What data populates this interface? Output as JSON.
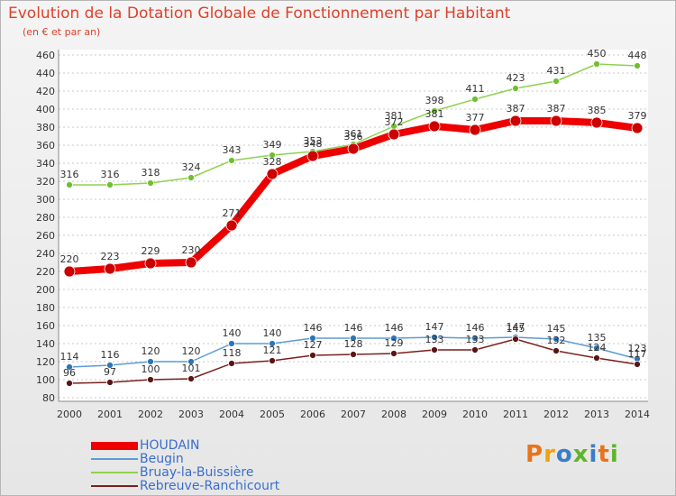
{
  "title": "Evolution de la Dotation Globale de Fonctionnement par Habitant",
  "subtitle": "(en € et par an)",
  "brand": "Proxiti",
  "colors": {
    "HOUDAIN": "#ee0000",
    "Beugin": "#5b9bd5",
    "Bruay-la-Buissière": "#8fd14f",
    "Rebreuve-Ranchicourt": "#7a1f1f",
    "axis_text": "#333333",
    "title": "#e0402a"
  },
  "chart_data": {
    "type": "line",
    "title": "Evolution de la Dotation Globale de Fonctionnement par Habitant",
    "subtitle": "(en € et par an)",
    "xlabel": "",
    "ylabel": "",
    "categories": [
      "2000",
      "2001",
      "2002",
      "2003",
      "2004",
      "2005",
      "2006",
      "2007",
      "2008",
      "2009",
      "2010",
      "2011",
      "2012",
      "2013",
      "2014"
    ],
    "ylim": [
      80,
      460
    ],
    "yticks": [
      80,
      100,
      120,
      140,
      160,
      180,
      200,
      220,
      240,
      260,
      280,
      300,
      320,
      340,
      360,
      380,
      400,
      420,
      440,
      460
    ],
    "grid": true,
    "legend_position": "bottom-left",
    "series": [
      {
        "name": "HOUDAIN",
        "values": [
          220,
          223,
          229,
          230,
          271,
          328,
          348,
          356,
          372,
          381,
          377,
          387,
          387,
          385,
          379
        ]
      },
      {
        "name": "Beugin",
        "values": [
          114,
          116,
          120,
          120,
          140,
          140,
          146,
          146,
          146,
          147,
          146,
          147,
          145,
          135,
          123
        ]
      },
      {
        "name": "Bruay-la-Buissière",
        "values": [
          316,
          316,
          318,
          324,
          343,
          349,
          353,
          361,
          381,
          398,
          411,
          423,
          431,
          450,
          448
        ]
      },
      {
        "name": "Rebreuve-Ranchicourt",
        "values": [
          96,
          97,
          100,
          101,
          118,
          121,
          127,
          128,
          129,
          133,
          133,
          145,
          132,
          124,
          117
        ]
      }
    ]
  }
}
